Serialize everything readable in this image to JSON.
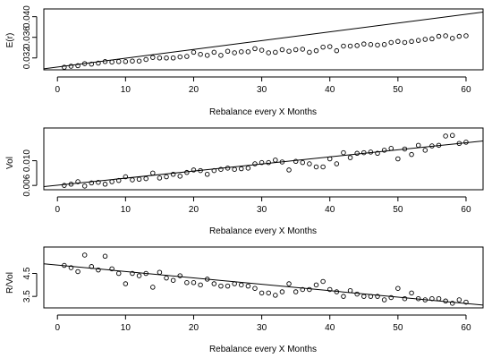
{
  "chart_data": [
    {
      "type": "scatter",
      "xlabel": "Rebalance every X Months",
      "ylabel": "E(r)",
      "xlim": [
        -2,
        62.5
      ],
      "ylim": [
        0.0297,
        0.0415
      ],
      "xticks": [
        0,
        10,
        20,
        30,
        40,
        50,
        60
      ],
      "yticks": [
        0.032,
        0.036,
        0.04
      ],
      "ytick_labels": [
        "0.032",
        "0.036",
        "0.040"
      ],
      "trend_line": {
        "x": [
          -2,
          62.5
        ],
        "y": [
          0.0299,
          0.0409
        ]
      },
      "x": [
        1,
        2,
        3,
        4,
        5,
        6,
        7,
        8,
        9,
        10,
        11,
        12,
        13,
        14,
        15,
        16,
        17,
        18,
        19,
        20,
        21,
        22,
        23,
        24,
        25,
        26,
        27,
        28,
        29,
        30,
        31,
        32,
        33,
        34,
        35,
        36,
        37,
        38,
        39,
        40,
        41,
        42,
        43,
        44,
        45,
        46,
        47,
        48,
        49,
        50,
        51,
        52,
        53,
        54,
        55,
        56,
        57,
        58,
        59,
        60
      ],
      "y": [
        0.0302,
        0.0304,
        0.0305,
        0.0309,
        0.0308,
        0.031,
        0.0313,
        0.0312,
        0.0313,
        0.0313,
        0.0314,
        0.0314,
        0.0317,
        0.0321,
        0.032,
        0.032,
        0.032,
        0.0322,
        0.0323,
        0.0331,
        0.0327,
        0.0325,
        0.0331,
        0.0325,
        0.0333,
        0.033,
        0.0332,
        0.0332,
        0.0338,
        0.0335,
        0.033,
        0.0331,
        0.0336,
        0.0333,
        0.0336,
        0.0337,
        0.0331,
        0.0334,
        0.0341,
        0.0342,
        0.0334,
        0.0343,
        0.0343,
        0.0344,
        0.0347,
        0.0346,
        0.0345,
        0.0346,
        0.035,
        0.0352,
        0.035,
        0.0352,
        0.0354,
        0.0356,
        0.0357,
        0.0362,
        0.0363,
        0.0358,
        0.0362,
        0.0363
      ]
    },
    {
      "type": "scatter",
      "xlabel": "Rebalance every X Months",
      "ylabel": "Vol",
      "xlim": [
        -2,
        62.5
      ],
      "ylim": [
        0.0053,
        0.0153
      ],
      "xticks": [
        0,
        10,
        20,
        30,
        40,
        50,
        60
      ],
      "yticks": [
        0.006,
        0.01
      ],
      "ytick_labels": [
        "0.006",
        "0.010"
      ],
      "trend_line": {
        "x": [
          -2,
          62.5
        ],
        "y": [
          0.0058,
          0.0132
        ]
      },
      "x": [
        1,
        2,
        3,
        4,
        5,
        6,
        7,
        8,
        9,
        10,
        11,
        12,
        13,
        14,
        15,
        16,
        17,
        18,
        19,
        20,
        21,
        22,
        23,
        24,
        25,
        26,
        27,
        28,
        29,
        30,
        31,
        32,
        33,
        34,
        35,
        36,
        37,
        38,
        39,
        40,
        41,
        42,
        43,
        44,
        45,
        46,
        47,
        48,
        49,
        50,
        51,
        52,
        53,
        54,
        55,
        56,
        57,
        58,
        59,
        60
      ],
      "y": [
        0.006,
        0.0062,
        0.0066,
        0.0059,
        0.0064,
        0.0065,
        0.0062,
        0.0066,
        0.0068,
        0.0074,
        0.0069,
        0.007,
        0.0071,
        0.008,
        0.0072,
        0.0074,
        0.0078,
        0.0075,
        0.0081,
        0.0085,
        0.0084,
        0.0078,
        0.0084,
        0.0086,
        0.0088,
        0.0086,
        0.0087,
        0.0088,
        0.0095,
        0.0097,
        0.0097,
        0.0101,
        0.0098,
        0.0085,
        0.0099,
        0.0097,
        0.0095,
        0.009,
        0.009,
        0.0103,
        0.0095,
        0.0113,
        0.0105,
        0.0112,
        0.0113,
        0.0114,
        0.0112,
        0.0117,
        0.012,
        0.0103,
        0.0119,
        0.011,
        0.0125,
        0.0117,
        0.0124,
        0.0125,
        0.014,
        0.0141,
        0.0128,
        0.013
      ]
    },
    {
      "type": "scatter",
      "xlabel": "Rebalance every X Months",
      "ylabel": "R/Vol",
      "xlim": [
        -2,
        62.5
      ],
      "ylim": [
        3.0,
        5.65
      ],
      "xticks": [
        0,
        10,
        20,
        30,
        40,
        50,
        60
      ],
      "yticks": [
        3.5,
        4.5
      ],
      "ytick_labels": [
        "3.5",
        "4.5"
      ],
      "trend_line": {
        "x": [
          -2,
          62.5
        ],
        "y": [
          4.92,
          3.12
        ]
      },
      "x": [
        1,
        2,
        3,
        4,
        5,
        6,
        7,
        8,
        9,
        10,
        11,
        12,
        13,
        14,
        15,
        16,
        17,
        18,
        19,
        20,
        21,
        22,
        23,
        24,
        25,
        26,
        27,
        28,
        29,
        30,
        31,
        32,
        33,
        34,
        35,
        36,
        37,
        38,
        39,
        40,
        41,
        42,
        43,
        44,
        45,
        46,
        47,
        48,
        49,
        50,
        51,
        52,
        53,
        54,
        55,
        56,
        57,
        58,
        59,
        60
      ],
      "y": [
        4.85,
        4.75,
        4.58,
        5.3,
        4.8,
        4.65,
        5.25,
        4.7,
        4.5,
        4.05,
        4.5,
        4.4,
        4.5,
        3.9,
        4.55,
        4.3,
        4.2,
        4.4,
        4.1,
        4.1,
        4.0,
        4.25,
        4.05,
        3.95,
        3.95,
        4.05,
        4.0,
        3.95,
        3.85,
        3.65,
        3.65,
        3.55,
        3.7,
        4.05,
        3.7,
        3.8,
        3.8,
        4.0,
        4.15,
        3.8,
        3.7,
        3.5,
        3.75,
        3.6,
        3.5,
        3.5,
        3.5,
        3.35,
        3.45,
        3.85,
        3.4,
        3.65,
        3.4,
        3.35,
        3.4,
        3.4,
        3.3,
        3.2,
        3.35,
        3.25
      ]
    }
  ]
}
